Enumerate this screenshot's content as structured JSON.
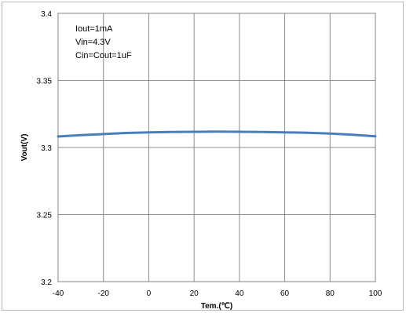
{
  "chart_data": {
    "type": "line",
    "xlabel": "Tem.(℃)",
    "ylabel": "Vout(V)",
    "xlim": [
      -40,
      100
    ],
    "ylim": [
      3.2,
      3.4
    ],
    "x_ticks": [
      "-40",
      "-20",
      "0",
      "20",
      "40",
      "60",
      "80",
      "100"
    ],
    "y_ticks": [
      "3.2",
      "3.25",
      "3.3",
      "3.35",
      "3.4"
    ],
    "grid": true,
    "annotations": [
      "Iout=1mA",
      "Vin=4.3V",
      "Cin=Cout=1uF"
    ],
    "series": [
      {
        "color": "#4a7ebb",
        "x": [
          -40,
          -30,
          -20,
          -10,
          0,
          10,
          20,
          30,
          40,
          50,
          60,
          70,
          80,
          90,
          100
        ],
        "y": [
          3.3082,
          3.3092,
          3.31,
          3.3108,
          3.3113,
          3.3115,
          3.3117,
          3.3118,
          3.3117,
          3.3115,
          3.3113,
          3.311,
          3.3104,
          3.3095,
          3.3083
        ]
      }
    ]
  }
}
